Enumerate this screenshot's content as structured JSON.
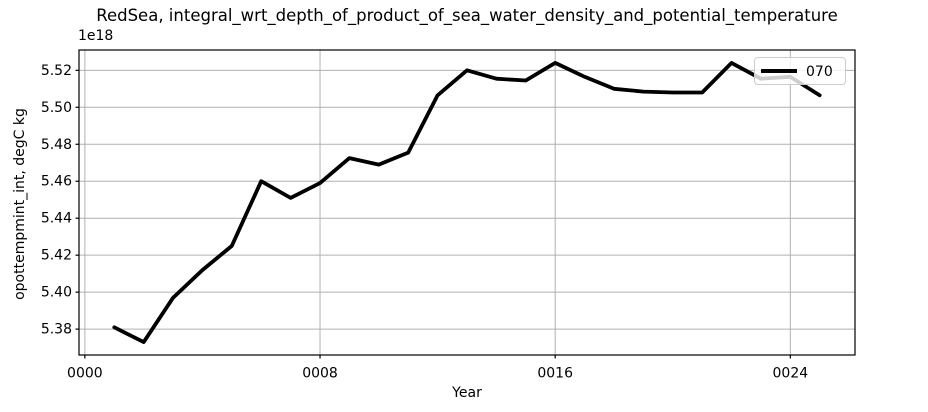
{
  "title": "RedSea, integral_wrt_depth_of_product_of_sea_water_density_and_potential_temperature",
  "axes": {
    "offset_text": "1e18",
    "xlabel": "Year",
    "ylabel": "opottempmint_int, degC kg",
    "x_tick_labels": [
      "0000",
      "0008",
      "0016",
      "0024"
    ],
    "x_tick_values": [
      0,
      8,
      16,
      24
    ],
    "y_tick_labels": [
      "5.38",
      "5.40",
      "5.42",
      "5.44",
      "5.46",
      "5.48",
      "5.50",
      "5.52"
    ],
    "y_tick_values": [
      5.38,
      5.4,
      5.42,
      5.44,
      5.46,
      5.48,
      5.5,
      5.52
    ]
  },
  "legend": {
    "label": "070"
  },
  "colors": {
    "line": "#000000",
    "grid": "#b0b0b0",
    "spine": "#000000",
    "text": "#000000",
    "legend_border": "#cccccc",
    "background": "#ffffff"
  },
  "chart_data": {
    "type": "line",
    "title": "RedSea, integral_wrt_depth_of_product_of_sea_water_density_and_potential_temperature",
    "xlabel": "Year",
    "ylabel": "opottempmint_int, degC kg",
    "y_units_multiplier": "1e18",
    "xlim": [
      -0.2,
      26.2
    ],
    "ylim": [
      5.366,
      5.531
    ],
    "grid": true,
    "legend_position": "upper right",
    "series": [
      {
        "name": "070",
        "color": "#000000",
        "x": [
          1,
          2,
          3,
          4,
          5,
          6,
          7,
          8,
          9,
          10,
          11,
          12,
          13,
          14,
          15,
          16,
          17,
          18,
          19,
          20,
          21,
          22,
          23,
          24,
          25
        ],
        "y": [
          5.381,
          5.373,
          5.397,
          5.412,
          5.425,
          5.46,
          5.451,
          5.459,
          5.4725,
          5.469,
          5.4755,
          5.5065,
          5.52,
          5.5155,
          5.5145,
          5.524,
          5.5165,
          5.51,
          5.5085,
          5.508,
          5.508,
          5.524,
          5.5155,
          5.5165,
          5.5065
        ]
      }
    ]
  }
}
